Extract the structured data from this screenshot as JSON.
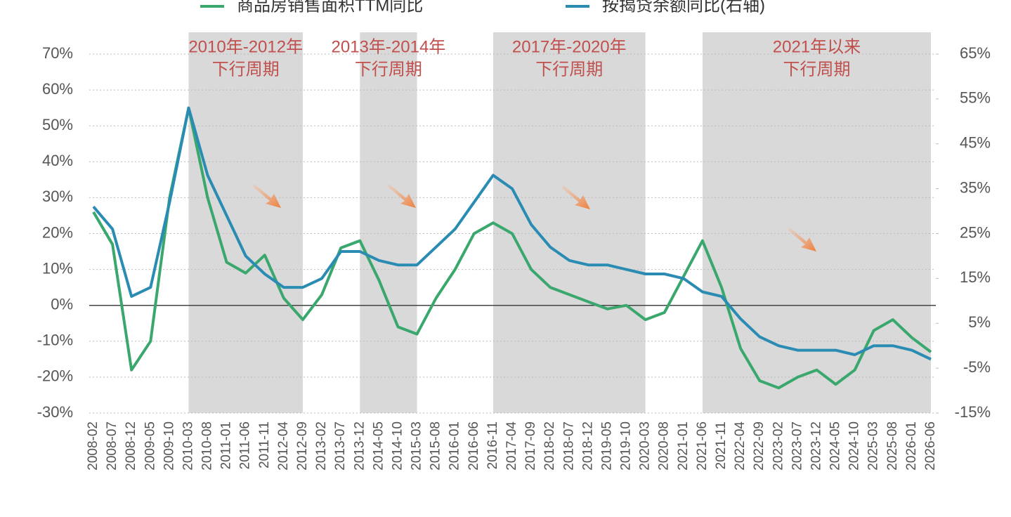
{
  "chart_data": {
    "type": "line",
    "categories": [
      "2008-02",
      "2008-07",
      "2008-12",
      "2009-05",
      "2009-10",
      "2010-03",
      "2010-08",
      "2011-01",
      "2011-06",
      "2011-11",
      "2012-04",
      "2012-09",
      "2013-02",
      "2013-07",
      "2013-12",
      "2014-05",
      "2014-10",
      "2015-03",
      "2015-08",
      "2016-01",
      "2016-06",
      "2016-11",
      "2017-04",
      "2017-09",
      "2018-02",
      "2018-07",
      "2018-12",
      "2019-05",
      "2019-10",
      "2020-03",
      "2020-08",
      "2021-01",
      "2021-06",
      "2021-11",
      "2022-04",
      "2022-09",
      "2023-02",
      "2023-07",
      "2023-12",
      "2024-05",
      "2024-10",
      "2025-03",
      "2025-08",
      "2026-01",
      "2026-06"
    ],
    "series": [
      {
        "name": "商品房销售面积TTM同比",
        "color": "#3aa76d",
        "values": [
          26,
          17,
          -18,
          -10,
          30,
          55,
          30,
          12,
          9,
          14,
          2,
          -4,
          3,
          16,
          18,
          7,
          -6,
          -8,
          2,
          10,
          20,
          23,
          20,
          10,
          5,
          3,
          1,
          -1,
          0,
          -4,
          -2,
          8,
          18,
          5,
          -12,
          -21,
          -23,
          -20,
          -18,
          -22,
          -18,
          -7,
          -4,
          -9,
          -13
        ]
      },
      {
        "name": "按揭贷余额同比(右轴)",
        "color": "#2a8cb3",
        "axis": "y2",
        "values": [
          31,
          26,
          11,
          13,
          32,
          53,
          38,
          29,
          20,
          16,
          13,
          13,
          15,
          21,
          21,
          19,
          18,
          18,
          22,
          26,
          32,
          38,
          35,
          27,
          22,
          19,
          18,
          18,
          17,
          16,
          16,
          15,
          12,
          11,
          6,
          2,
          0,
          -1,
          -1,
          -1,
          -2,
          0,
          0,
          -1,
          -3
        ]
      }
    ],
    "ylim": [
      -30,
      70
    ],
    "yticks": [
      {
        "value": -30,
        "label": "-30%"
      },
      {
        "value": -20,
        "label": "-20%"
      },
      {
        "value": -10,
        "label": "-10%"
      },
      {
        "value": 0,
        "label": "0%"
      },
      {
        "value": 10,
        "label": "10%"
      },
      {
        "value": 20,
        "label": "20%"
      },
      {
        "value": 30,
        "label": "30%"
      },
      {
        "value": 40,
        "label": "40%"
      },
      {
        "value": 50,
        "label": "50%"
      },
      {
        "value": 60,
        "label": "60%"
      },
      {
        "value": 70,
        "label": "70%"
      }
    ],
    "y2lim": [
      -15,
      65
    ],
    "y2ticks": [
      {
        "value": -15,
        "label": "-15%"
      },
      {
        "value": -5,
        "label": "-5%"
      },
      {
        "value": 5,
        "label": "5%"
      },
      {
        "value": 15,
        "label": "15%"
      },
      {
        "value": 25,
        "label": "25%"
      },
      {
        "value": 35,
        "label": "35%"
      },
      {
        "value": 45,
        "label": "45%"
      },
      {
        "value": 55,
        "label": "55%"
      },
      {
        "value": 65,
        "label": "65%"
      }
    ],
    "grid": true,
    "regions": [
      {
        "from": "2010-03",
        "to": "2012-09",
        "label": [
          "2010年-2012年",
          "下行周期"
        ]
      },
      {
        "from": "2013-12",
        "to": "2015-03",
        "label": [
          "2013年-2014年",
          "下行周期"
        ]
      },
      {
        "from": "2016-11",
        "to": "2020-03",
        "label": [
          "2017年-2020年",
          "下行周期"
        ]
      },
      {
        "from": "2021-06",
        "to": "2026-06",
        "label": [
          "2021年以来",
          "下行周期"
        ]
      }
    ]
  }
}
